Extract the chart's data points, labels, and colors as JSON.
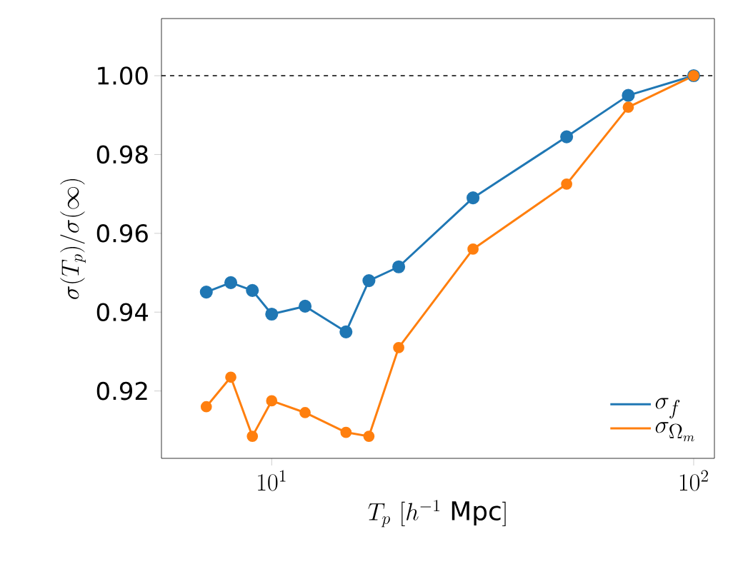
{
  "chart_data": {
    "type": "line",
    "x": [
      7,
      8,
      9,
      10,
      12,
      15,
      17,
      20,
      30,
      50,
      70,
      100
    ],
    "series": [
      {
        "name": "\\sigma_f",
        "color": "#1f77b4",
        "values": [
          0.9451,
          0.9475,
          0.9455,
          0.9395,
          0.9415,
          0.935,
          0.948,
          0.9515,
          0.969,
          0.9845,
          0.995,
          1.0
        ]
      },
      {
        "name": "\\sigma_{\\Omega_m}",
        "color": "#ff7f0e",
        "values": [
          0.916,
          0.9235,
          0.9085,
          0.9175,
          0.9145,
          0.9095,
          0.9085,
          0.931,
          0.956,
          0.9725,
          0.992,
          1.0
        ]
      }
    ],
    "xlabel": "T_p\\ [h^{-1}\\ \\mathrm{Mpc}]",
    "ylabel": "\\sigma(T_p)/\\sigma(\\infty)",
    "log": "x",
    "xlim": [
      5.48,
      112
    ],
    "xticks": [
      {
        "value": 10,
        "label": "10^1"
      },
      {
        "value": 100,
        "label": "10^2"
      }
    ],
    "ylim": [
      0.9029,
      1.0145
    ],
    "yticks": [
      {
        "value": 0.92,
        "label": "0.92"
      },
      {
        "value": 0.94,
        "label": "0.94"
      },
      {
        "value": 0.96,
        "label": "0.96"
      },
      {
        "value": 0.98,
        "label": "0.98"
      },
      {
        "value": 1.0,
        "label": "1.00"
      }
    ],
    "ref_lines": [
      {
        "axis": "y",
        "value": 1.0,
        "color": "#000000",
        "line_style": "dashed"
      }
    ],
    "marker": "circle",
    "line_style": "solid",
    "grid": false,
    "legend": "bottom right"
  }
}
